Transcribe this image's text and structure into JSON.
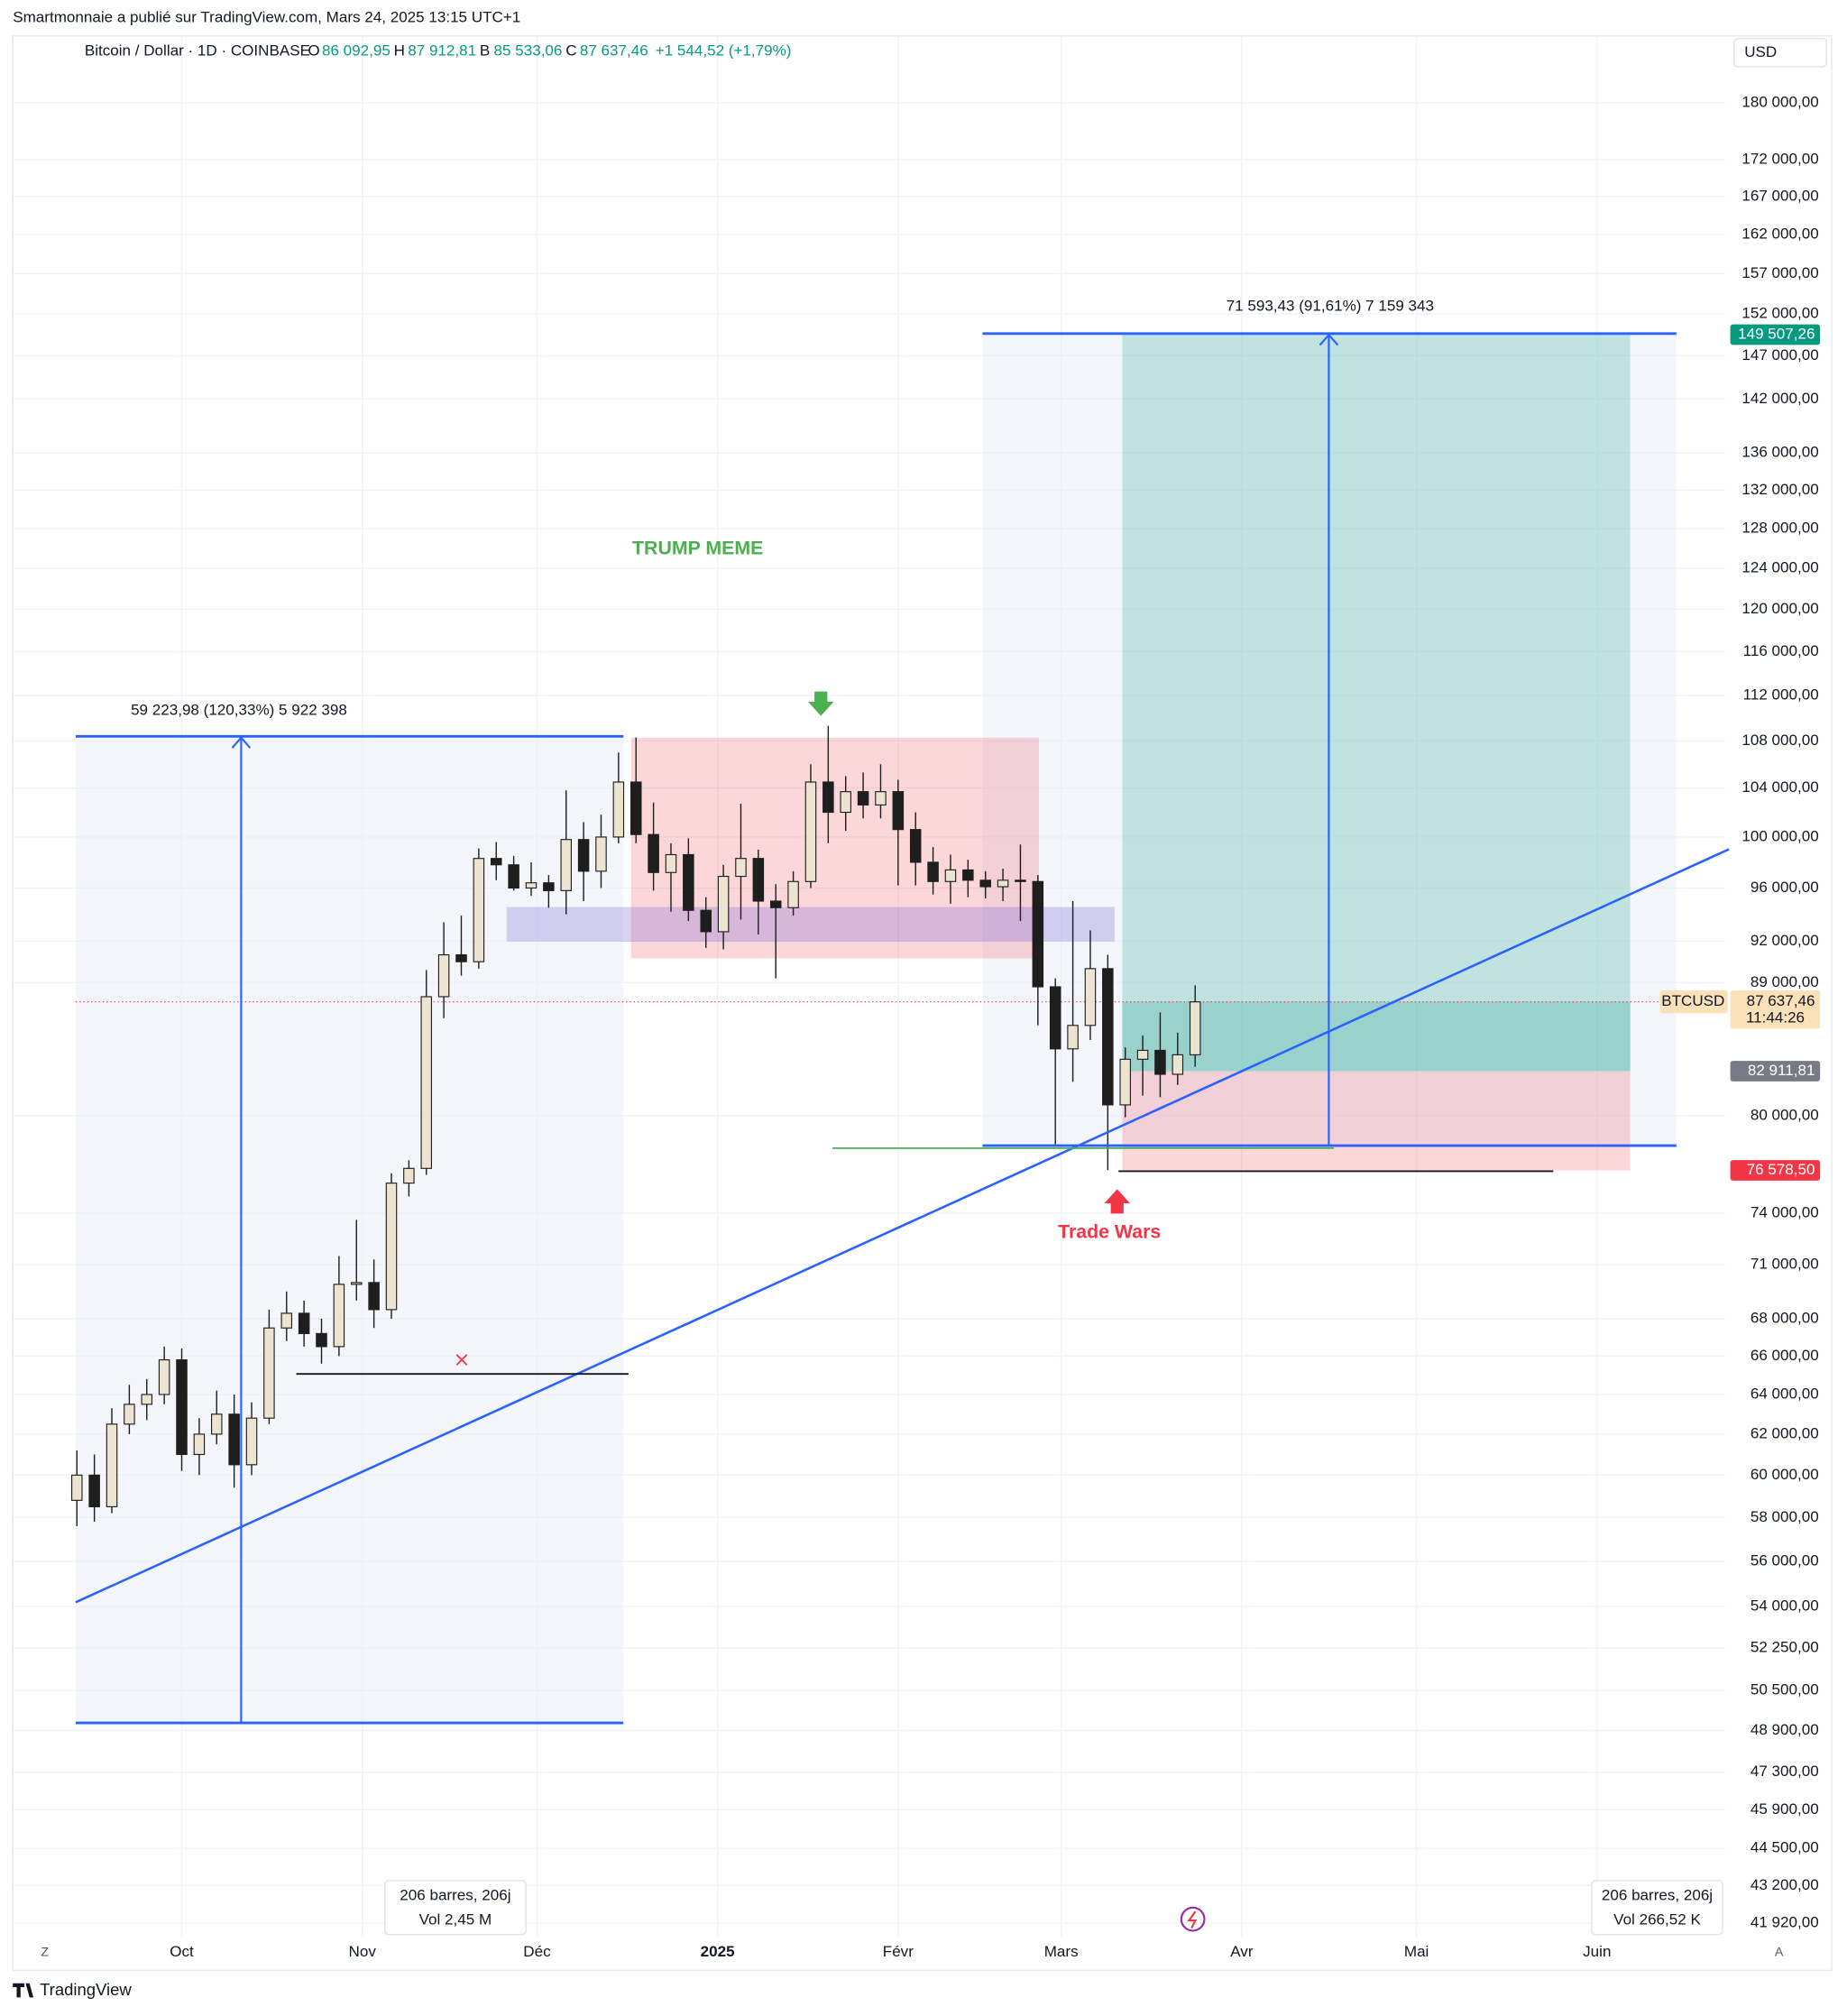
{
  "chart_data": {
    "type": "candlestick",
    "header": "Smartmonnaie a publié sur TradingView.com, Mars 24, 2025 13:15 UTC+1",
    "title": "Bitcoin / Dollar · 1D · COINBASE",
    "ohlc_legend": [
      {
        "key": "O",
        "label": "86 092,95"
      },
      {
        "key": "H",
        "label": "87 912,81"
      },
      {
        "key": "B",
        "label": "85 533,06"
      },
      {
        "key": "C",
        "label": "87 637,46"
      }
    ],
    "change_label": "+1 544,52 (+1,79%)",
    "currency": "USD",
    "log_scale": true,
    "grid": true,
    "up_color": "#ece3d1",
    "down_color": "#1e1e1e",
    "x": [
      "2024-09-13",
      "2024-09-16",
      "2024-09-19",
      "2024-09-22",
      "2024-09-25",
      "2024-09-28",
      "2024-10-01",
      "2024-10-04",
      "2024-10-07",
      "2024-10-10",
      "2024-10-13",
      "2024-10-16",
      "2024-10-19",
      "2024-10-22",
      "2024-10-25",
      "2024-10-28",
      "2024-10-31",
      "2024-11-03",
      "2024-11-06",
      "2024-11-09",
      "2024-11-12",
      "2024-11-15",
      "2024-11-18",
      "2024-11-21",
      "2024-11-24",
      "2024-11-27",
      "2024-11-30",
      "2024-12-03",
      "2024-12-06",
      "2024-12-09",
      "2024-12-12",
      "2024-12-15",
      "2024-12-18",
      "2024-12-21",
      "2024-12-24",
      "2024-12-27",
      "2024-12-30",
      "2025-01-02",
      "2025-01-05",
      "2025-01-08",
      "2025-01-11",
      "2025-01-14",
      "2025-01-17",
      "2025-01-20",
      "2025-01-23",
      "2025-01-26",
      "2025-01-29",
      "2025-02-01",
      "2025-02-04",
      "2025-02-07",
      "2025-02-10",
      "2025-02-13",
      "2025-02-16",
      "2025-02-19",
      "2025-02-22",
      "2025-02-25",
      "2025-02-28",
      "2025-03-03",
      "2025-03-06",
      "2025-03-09",
      "2025-03-12",
      "2025-03-15",
      "2025-03-18",
      "2025-03-21",
      "2025-03-24"
    ],
    "open": [
      58800,
      60000,
      58500,
      62500,
      63500,
      64000,
      65800,
      61000,
      62000,
      63000,
      60500,
      62800,
      67500,
      68300,
      67200,
      66500,
      69900,
      70000,
      68500,
      75800,
      76700,
      88000,
      91000,
      90500,
      98300,
      97800,
      96000,
      96400,
      95800,
      99800,
      97300,
      100000,
      104500,
      100200,
      97200,
      98600,
      94300,
      92700,
      96900,
      98300,
      95000,
      94500,
      96500,
      104500,
      102000,
      103700,
      102600,
      103700,
      100600,
      98000,
      96500,
      97400,
      96600,
      96100,
      96600,
      96500,
      88700,
      84400,
      86000,
      90000,
      80700,
      83700,
      84300,
      82700,
      84000
    ],
    "high": [
      61200,
      61000,
      63300,
      64500,
      64800,
      66500,
      66400,
      62800,
      64200,
      64000,
      63600,
      68500,
      69500,
      69000,
      68000,
      71500,
      73600,
      71300,
      76400,
      77200,
      89900,
      93400,
      93900,
      99100,
      99600,
      98500,
      98000,
      97000,
      103800,
      101200,
      101800,
      107000,
      108300,
      102800,
      99500,
      99900,
      95300,
      97800,
      102700,
      99000,
      96300,
      97300,
      106000,
      109300,
      105000,
      105300,
      106000,
      104700,
      102000,
      99200,
      98600,
      98200,
      97300,
      97500,
      99400,
      97000,
      89300,
      95000,
      92800,
      91000,
      84500,
      85300,
      86900,
      85500,
      88800
    ],
    "low": [
      57600,
      57800,
      58200,
      62000,
      62700,
      63500,
      60200,
      60000,
      61500,
      59400,
      60000,
      62500,
      66800,
      66500,
      65600,
      66000,
      69000,
      67500,
      68000,
      75000,
      76300,
      86500,
      89500,
      90000,
      96600,
      95800,
      95400,
      94500,
      94000,
      95000,
      96000,
      99500,
      99500,
      95800,
      94200,
      93500,
      91500,
      91400,
      93600,
      92500,
      89300,
      93900,
      96000,
      99500,
      100500,
      101500,
      101500,
      96200,
      96200,
      95500,
      94800,
      95300,
      95200,
      95000,
      93500,
      86000,
      78200,
      82200,
      85000,
      76600,
      79900,
      81300,
      81200,
      82000,
      83200
    ],
    "close": [
      60000,
      58500,
      62500,
      63500,
      64000,
      65800,
      61000,
      62000,
      63000,
      60500,
      62800,
      67500,
      68300,
      67200,
      66500,
      69900,
      70000,
      68500,
      75800,
      76700,
      88000,
      91000,
      90500,
      98300,
      97800,
      96000,
      96400,
      95800,
      99800,
      97300,
      100000,
      104500,
      100200,
      97200,
      98600,
      94300,
      92700,
      96900,
      98300,
      95000,
      94500,
      96500,
      104500,
      102000,
      103700,
      102600,
      103700,
      100600,
      98000,
      96500,
      97400,
      96600,
      96100,
      96600,
      96500,
      88700,
      84400,
      86000,
      90000,
      80700,
      83700,
      84300,
      82700,
      84000,
      87637.46
    ],
    "xlim": [
      "2024-09-02",
      "2025-06-23"
    ],
    "xticks": [
      {
        "value": "2024-10-01",
        "label": "Oct"
      },
      {
        "value": "2024-11-01",
        "label": "Nov"
      },
      {
        "value": "2024-12-01",
        "label": "Déc"
      },
      {
        "value": "2025-01-01",
        "label": "2025"
      },
      {
        "value": "2025-02-01",
        "label": "Févr"
      },
      {
        "value": "2025-03-01",
        "label": "Mars"
      },
      {
        "value": "2025-04-01",
        "label": "Avr"
      },
      {
        "value": "2025-05-01",
        "label": "Mai"
      },
      {
        "value": "2025-06-01",
        "label": "Juin"
      }
    ],
    "ylim": [
      41450,
      189900
    ],
    "yticks": [
      {
        "value": 180000,
        "label": "180 000,00"
      },
      {
        "value": 172000,
        "label": "172 000,00"
      },
      {
        "value": 167000,
        "label": "167 000,00"
      },
      {
        "value": 162000,
        "label": "162 000,00"
      },
      {
        "value": 157000,
        "label": "157 000,00"
      },
      {
        "value": 152000,
        "label": "152 000,00"
      },
      {
        "value": 147000,
        "label": "147 000,00"
      },
      {
        "value": 142000,
        "label": "142 000,00"
      },
      {
        "value": 136000,
        "label": "136 000,00"
      },
      {
        "value": 132000,
        "label": "132 000,00"
      },
      {
        "value": 128000,
        "label": "128 000,00"
      },
      {
        "value": 124000,
        "label": "124 000,00"
      },
      {
        "value": 120000,
        "label": "120 000,00"
      },
      {
        "value": 116000,
        "label": "116 000,00"
      },
      {
        "value": 112000,
        "label": "112 000,00"
      },
      {
        "value": 108000,
        "label": "108 000,00"
      },
      {
        "value": 104000,
        "label": "104 000,00"
      },
      {
        "value": 100000,
        "label": "100 000,00"
      },
      {
        "value": 96000,
        "label": "96 000,00"
      },
      {
        "value": 92000,
        "label": "92 000,00"
      },
      {
        "value": 89000,
        "label": "89 000,00"
      },
      {
        "value": 80000,
        "label": "80 000,00"
      },
      {
        "value": 74000,
        "label": "74 000,00"
      },
      {
        "value": 71000,
        "label": "71 000,00"
      },
      {
        "value": 68000,
        "label": "68 000,00"
      },
      {
        "value": 66000,
        "label": "66 000,00"
      },
      {
        "value": 64000,
        "label": "64 000,00"
      },
      {
        "value": 62000,
        "label": "62 000,00"
      },
      {
        "value": 60000,
        "label": "60 000,00"
      },
      {
        "value": 58000,
        "label": "58 000,00"
      },
      {
        "value": 56000,
        "label": "56 000,00"
      },
      {
        "value": 54000,
        "label": "54 000,00"
      },
      {
        "value": 52250,
        "label": "52 250,00"
      },
      {
        "value": 50500,
        "label": "50 500,00"
      },
      {
        "value": 48900,
        "label": "48 900,00"
      },
      {
        "value": 47300,
        "label": "47 300,00"
      },
      {
        "value": 45900,
        "label": "45 900,00"
      },
      {
        "value": 44500,
        "label": "44 500,00"
      },
      {
        "value": 43200,
        "label": "43 200,00"
      },
      {
        "value": 41920,
        "label": "41 920,00"
      }
    ],
    "symbol": "BTCUSD",
    "last_price": {
      "value": 87637.46,
      "label": "87 637,46"
    },
    "countdown": "11:44:26",
    "take_profit": {
      "value": 149507.26,
      "label": "149 507,26"
    },
    "entry": {
      "value": 82911.81,
      "label": "82 911,81"
    },
    "stop": {
      "value": 76578.5,
      "label": "76 578,50"
    },
    "annotations": [
      "59 223,98 (120,33%) 5 922 398",
      "71 593,43 (91,61%) 7 159 343",
      "TRUMP MEME",
      "Trade Wars"
    ],
    "range_info": [
      {
        "bars": "206 barres, 206j",
        "vol": "Vol 2,45 M"
      },
      {
        "bars": "206 barres, 206j",
        "vol": "Vol 266,52 K"
      }
    ],
    "axis_buttons": [
      "Z",
      "A"
    ],
    "brand": "TradingView"
  }
}
